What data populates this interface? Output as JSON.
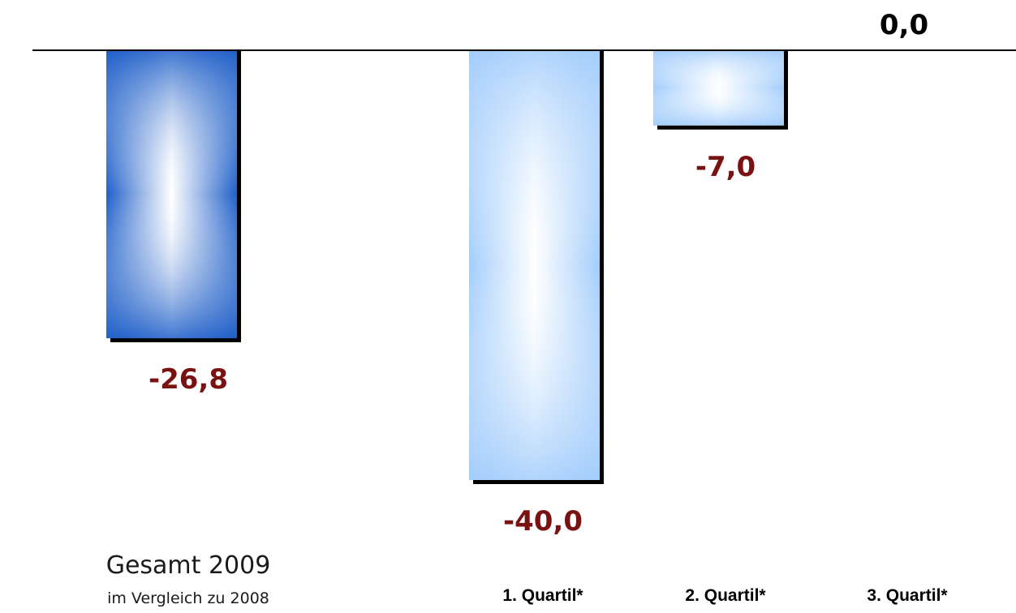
{
  "chart_data": {
    "type": "bar",
    "categories": [
      {
        "label": "Gesamt 2009",
        "sublabel": "im Vergleich zu 2008"
      },
      {
        "label": "1. Quartil*",
        "sublabel": ""
      },
      {
        "label": "2. Quartil*",
        "sublabel": ""
      },
      {
        "label": "3. Quartil*",
        "sublabel": ""
      }
    ],
    "values": [
      -26.8,
      -40.0,
      -7.0,
      0.0
    ],
    "value_labels": [
      "-26,8",
      "-40,0",
      "-7,0",
      "0,0"
    ],
    "ylim": [
      -40,
      0
    ],
    "grid": false,
    "legend": "none",
    "title": "",
    "xlabel": "",
    "ylabel": ""
  },
  "colors": {
    "total_bar": "#1f5fc8",
    "quartile_bar": "#a3cdfb",
    "negative_label": "#7a1212",
    "zero_label": "#000000",
    "shadow": "#000000",
    "baseline": "#000000"
  }
}
